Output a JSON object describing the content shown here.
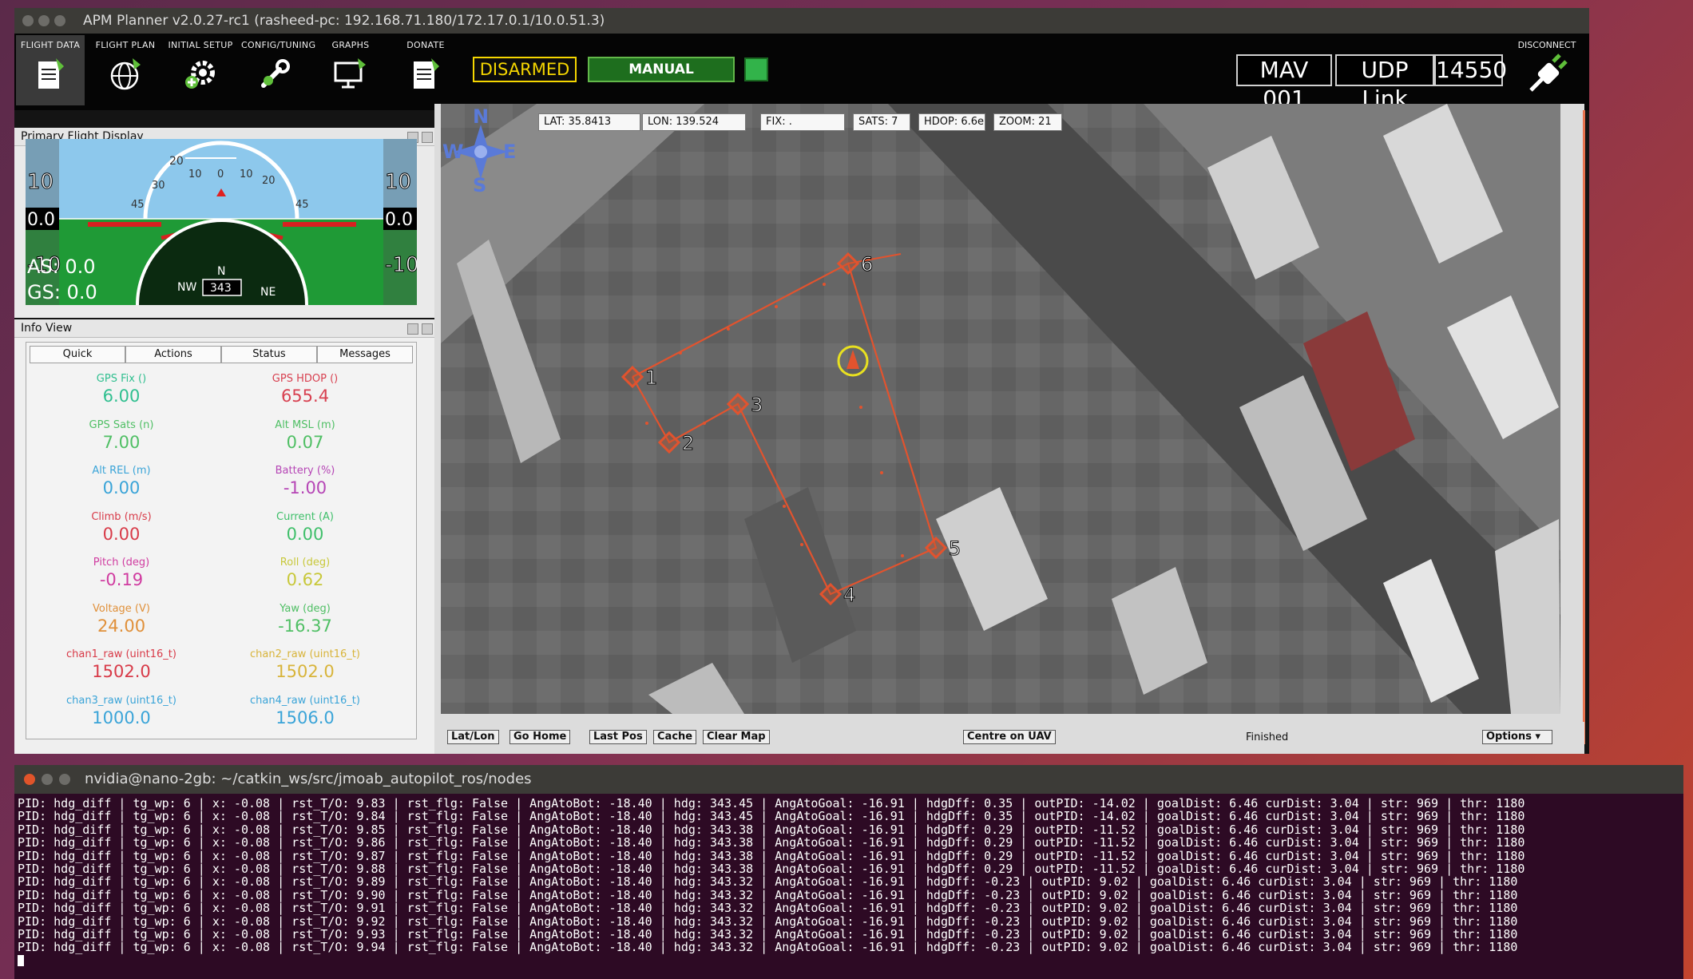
{
  "window": {
    "title": "APM Planner v2.0.27-rc1 (rasheed-pc: 192.168.71.180/172.17.0.1/10.0.51.3)"
  },
  "toolbar": {
    "items": [
      {
        "label": "FLIGHT DATA",
        "icon": "document-icon"
      },
      {
        "label": "FLIGHT PLAN",
        "icon": "globe-icon"
      },
      {
        "label": "INITIAL SETUP",
        "icon": "gear-icon"
      },
      {
        "label": "CONFIG/TUNING",
        "icon": "wrench-icon"
      },
      {
        "label": "GRAPHS",
        "icon": "monitor-icon"
      },
      {
        "label": "DONATE",
        "icon": "document-icon"
      }
    ],
    "armed_status": "DISARMED",
    "flight_mode": "MANUAL",
    "mav_id": "MAV 001",
    "link_type": "UDP Link",
    "port": "14550",
    "disconnect_label": "DISCONNECT",
    "colors": {
      "armed": "#f5d600",
      "mode": "#1e6e1e",
      "link_ok": "#32b34a"
    }
  },
  "pfd": {
    "title": "Primary Flight Display",
    "pitch_scale": [
      "20",
      "10",
      "0",
      "10",
      "20"
    ],
    "bank_marks": [
      "45",
      "30",
      "45"
    ],
    "left_tape": [
      "10",
      "0.0",
      "-10"
    ],
    "right_tape": [
      "10",
      "0.0",
      "-10"
    ],
    "airspeed": "AS: 0.0",
    "groundspeed": "GS: 0.0",
    "heading": "343",
    "compass_labels": [
      "NW",
      "N",
      "NE"
    ]
  },
  "info_view": {
    "title": "Info View",
    "tabs": [
      "Quick",
      "Actions",
      "Status",
      "Messages"
    ],
    "metrics": [
      {
        "label": "GPS Fix ()",
        "value": "6.00",
        "color": "#2fbf8f"
      },
      {
        "label": "GPS HDOP ()",
        "value": "655.4",
        "color": "#d84050"
      },
      {
        "label": "GPS Sats (n)",
        "value": "7.00",
        "color": "#4fbf64"
      },
      {
        "label": "Alt MSL (m)",
        "value": "0.07",
        "color": "#4fbf64"
      },
      {
        "label": "Alt REL (m)",
        "value": "0.00",
        "color": "#3aa4d8"
      },
      {
        "label": "Battery (%)",
        "value": "-1.00",
        "color": "#b646b6"
      },
      {
        "label": "Climb (m/s)",
        "value": "0.00",
        "color": "#d83a48"
      },
      {
        "label": "Current (A)",
        "value": "0.00",
        "color": "#3fbf6a"
      },
      {
        "label": "Pitch (deg)",
        "value": "-0.19",
        "color": "#d03ca0"
      },
      {
        "label": "Roll (deg)",
        "value": "0.62",
        "color": "#c8c83a"
      },
      {
        "label": "Voltage (V)",
        "value": "24.00",
        "color": "#e0903a"
      },
      {
        "label": "Yaw (deg)",
        "value": "-16.37",
        "color": "#4fbf64"
      },
      {
        "label": "chan1_raw (uint16_t)",
        "value": "1502.0",
        "color": "#d83a48"
      },
      {
        "label": "chan2_raw (uint16_t)",
        "value": "1502.0",
        "color": "#d8b43a"
      },
      {
        "label": "chan3_raw (uint16_t)",
        "value": "1000.0",
        "color": "#3aa4d8"
      },
      {
        "label": "chan4_raw (uint16_t)",
        "value": "1506.0",
        "color": "#3aa4d8"
      }
    ]
  },
  "map": {
    "compass": [
      "N",
      "W",
      "E",
      "S"
    ],
    "lat": "LAT: 35.8413",
    "lon": "LON: 139.524",
    "fix": "FIX: .",
    "sats": "SATS: 7",
    "hdop": "HDOP: 6.6e",
    "zoom": "ZOOM: 21",
    "waypoints": [
      "1",
      "2",
      "3",
      "4",
      "5",
      "6"
    ],
    "buttons": [
      "Lat/Lon",
      "Go Home",
      "Last Pos",
      "Cache",
      "Clear Map"
    ],
    "centre_button": "Centre on UAV",
    "status": "Finished",
    "options_button": "Options"
  },
  "terminal": {
    "title": "nvidia@nano-2gb: ~/catkin_ws/src/jmoab_autopilot_ros/nodes",
    "lines": [
      "PID: hdg_diff | tg_wp: 6 | x: -0.08 | rst_T/O: 9.83 | rst_flg: False | AngAtoBot: -18.40 | hdg: 343.45 | AngAtoGoal: -16.91 | hdgDff: 0.35 | outPID: -14.02 | goalDist: 6.46 curDist: 3.04 | str: 969 | thr: 1180",
      "PID: hdg_diff | tg_wp: 6 | x: -0.08 | rst_T/O: 9.84 | rst_flg: False | AngAtoBot: -18.40 | hdg: 343.45 | AngAtoGoal: -16.91 | hdgDff: 0.35 | outPID: -14.02 | goalDist: 6.46 curDist: 3.04 | str: 969 | thr: 1180",
      "PID: hdg_diff | tg_wp: 6 | x: -0.08 | rst_T/O: 9.85 | rst_flg: False | AngAtoBot: -18.40 | hdg: 343.38 | AngAtoGoal: -16.91 | hdgDff: 0.29 | outPID: -11.52 | goalDist: 6.46 curDist: 3.04 | str: 969 | thr: 1180",
      "PID: hdg_diff | tg_wp: 6 | x: -0.08 | rst_T/O: 9.86 | rst_flg: False | AngAtoBot: -18.40 | hdg: 343.38 | AngAtoGoal: -16.91 | hdgDff: 0.29 | outPID: -11.52 | goalDist: 6.46 curDist: 3.04 | str: 969 | thr: 1180",
      "PID: hdg_diff | tg_wp: 6 | x: -0.08 | rst_T/O: 9.87 | rst_flg: False | AngAtoBot: -18.40 | hdg: 343.38 | AngAtoGoal: -16.91 | hdgDff: 0.29 | outPID: -11.52 | goalDist: 6.46 curDist: 3.04 | str: 969 | thr: 1180",
      "PID: hdg_diff | tg_wp: 6 | x: -0.08 | rst_T/O: 9.88 | rst_flg: False | AngAtoBot: -18.40 | hdg: 343.38 | AngAtoGoal: -16.91 | hdgDff: 0.29 | outPID: -11.52 | goalDist: 6.46 curDist: 3.04 | str: 969 | thr: 1180",
      "PID: hdg_diff | tg_wp: 6 | x: -0.08 | rst_T/O: 9.89 | rst_flg: False | AngAtoBot: -18.40 | hdg: 343.32 | AngAtoGoal: -16.91 | hdgDff: -0.23 | outPID: 9.02 | goalDist: 6.46 curDist: 3.04 | str: 969 | thr: 1180",
      "PID: hdg_diff | tg_wp: 6 | x: -0.08 | rst_T/O: 9.90 | rst_flg: False | AngAtoBot: -18.40 | hdg: 343.32 | AngAtoGoal: -16.91 | hdgDff: -0.23 | outPID: 9.02 | goalDist: 6.46 curDist: 3.04 | str: 969 | thr: 1180",
      "PID: hdg_diff | tg_wp: 6 | x: -0.08 | rst_T/O: 9.91 | rst_flg: False | AngAtoBot: -18.40 | hdg: 343.32 | AngAtoGoal: -16.91 | hdgDff: -0.23 | outPID: 9.02 | goalDist: 6.46 curDist: 3.04 | str: 969 | thr: 1180",
      "PID: hdg_diff | tg_wp: 6 | x: -0.08 | rst_T/O: 9.92 | rst_flg: False | AngAtoBot: -18.40 | hdg: 343.32 | AngAtoGoal: -16.91 | hdgDff: -0.23 | outPID: 9.02 | goalDist: 6.46 curDist: 3.04 | str: 969 | thr: 1180",
      "PID: hdg_diff | tg_wp: 6 | x: -0.08 | rst_T/O: 9.93 | rst_flg: False | AngAtoBot: -18.40 | hdg: 343.32 | AngAtoGoal: -16.91 | hdgDff: -0.23 | outPID: 9.02 | goalDist: 6.46 curDist: 3.04 | str: 969 | thr: 1180",
      "PID: hdg_diff | tg_wp: 6 | x: -0.08 | rst_T/O: 9.94 | rst_flg: False | AngAtoBot: -18.40 | hdg: 343.32 | AngAtoGoal: -16.91 | hdgDff: -0.23 | outPID: 9.02 | goalDist: 6.46 curDist: 3.04 | str: 969 | thr: 1180"
    ]
  }
}
